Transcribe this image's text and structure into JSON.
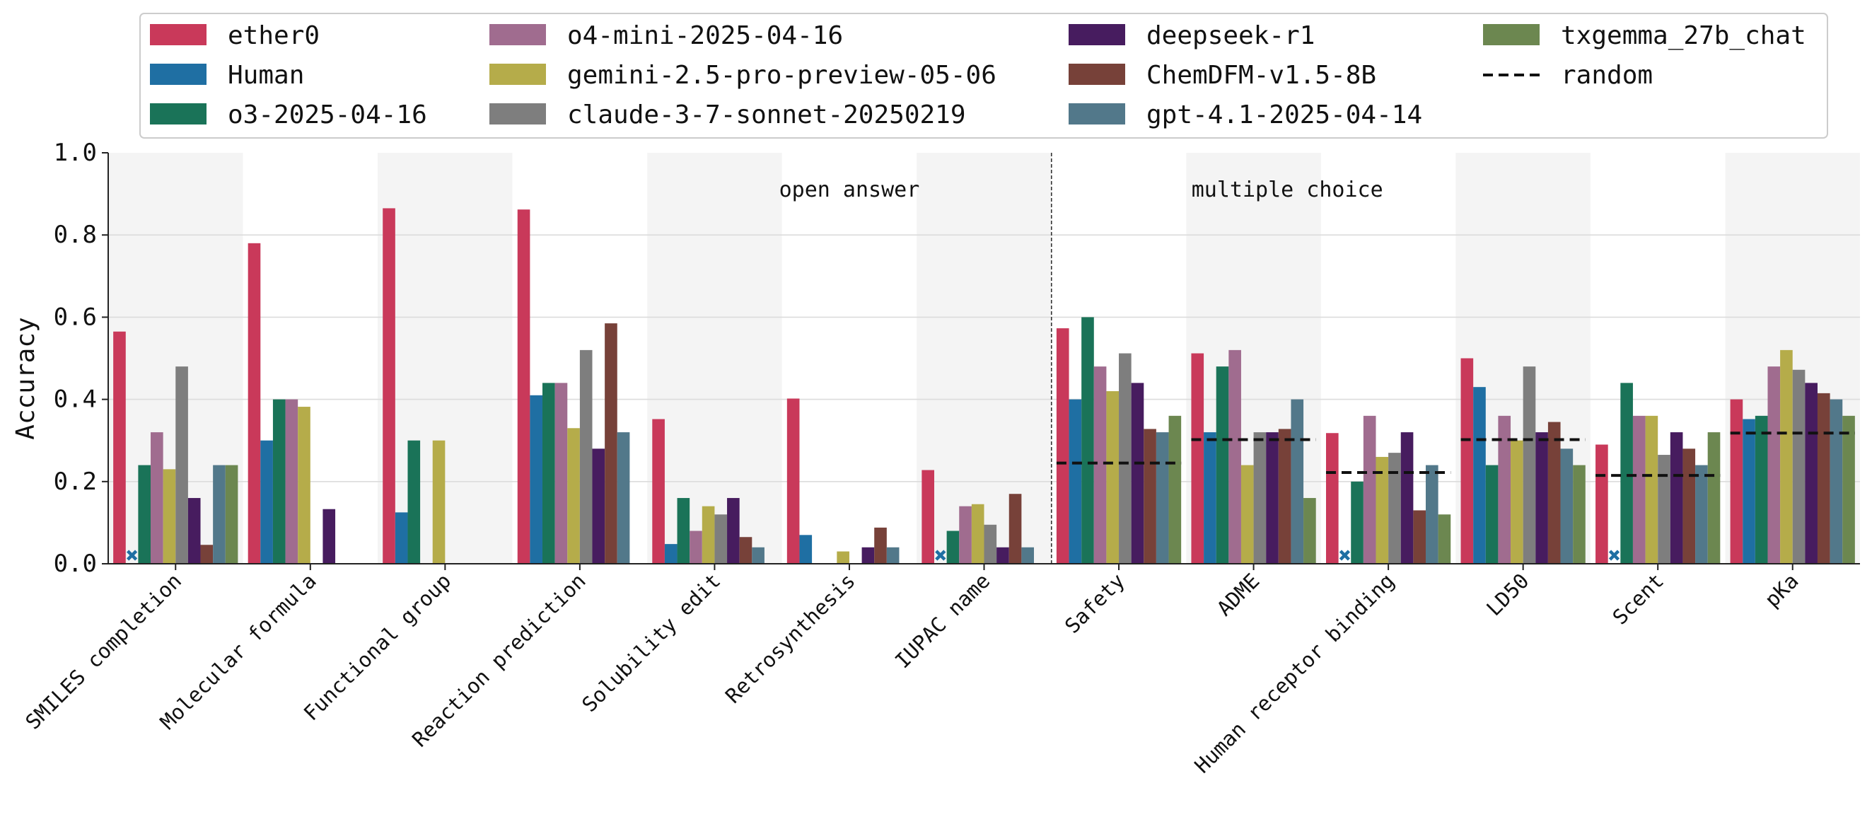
{
  "chart_data": {
    "type": "bar",
    "title": "",
    "xlabel": "",
    "ylabel": "Accuracy",
    "ylim": [
      0,
      1.0
    ],
    "yticks": [
      "0.0",
      "0.2",
      "0.4",
      "0.6",
      "0.8",
      "1.0"
    ],
    "grid": true,
    "legend_position": "top",
    "section_labels": [
      "open answer",
      "multiple choice"
    ],
    "categories": [
      "SMILES completion",
      "Molecular formula",
      "Functional group",
      "Reaction prediction",
      "Solubility edit",
      "Retrosynthesis",
      "IUPAC name",
      "Safety",
      "ADME",
      "Human receptor binding",
      "LD50",
      "Scent",
      "pKa"
    ],
    "series": [
      {
        "name": "ether0",
        "color": "#c9395a",
        "values": [
          0.565,
          0.78,
          0.865,
          0.862,
          0.352,
          0.402,
          0.228,
          0.573,
          0.512,
          0.318,
          0.5,
          0.29,
          0.4
        ]
      },
      {
        "name": "Human",
        "color": "#1f6fa3",
        "values": [
          null,
          0.3,
          0.125,
          0.41,
          0.048,
          0.07,
          null,
          0.4,
          0.32,
          null,
          0.43,
          null,
          0.352
        ]
      },
      {
        "name": "o3-2025-04-16",
        "color": "#1a7358",
        "values": [
          0.24,
          0.4,
          0.3,
          0.44,
          0.16,
          0.0,
          0.08,
          0.6,
          0.48,
          0.2,
          0.24,
          0.44,
          0.36
        ]
      },
      {
        "name": "o4-mini-2025-04-16",
        "color": "#a06c8f",
        "values": [
          0.32,
          0.4,
          0.0,
          0.44,
          0.08,
          0.0,
          0.14,
          0.48,
          0.52,
          0.36,
          0.36,
          0.36,
          0.48
        ]
      },
      {
        "name": "gemini-2.5-pro-preview-05-06",
        "color": "#b5ac4a",
        "values": [
          0.23,
          0.382,
          0.3,
          0.33,
          0.14,
          0.03,
          0.145,
          0.42,
          0.24,
          0.26,
          0.3,
          0.36,
          0.52
        ]
      },
      {
        "name": "claude-3-7-sonnet-20250219",
        "color": "#7e7e7e",
        "values": [
          0.48,
          0.0,
          0.0,
          0.52,
          0.12,
          0.0,
          0.095,
          0.512,
          0.32,
          0.27,
          0.48,
          0.265,
          0.472
        ]
      },
      {
        "name": "deepseek-r1",
        "color": "#471c5f",
        "values": [
          0.16,
          0.133,
          0.0,
          0.28,
          0.16,
          0.04,
          0.04,
          0.44,
          0.32,
          0.32,
          0.32,
          0.32,
          0.44
        ]
      },
      {
        "name": "ChemDFM-v1.5-8B",
        "color": "#774139",
        "values": [
          0.046,
          0.0,
          0.0,
          0.585,
          0.065,
          0.088,
          0.17,
          0.328,
          0.328,
          0.13,
          0.345,
          0.28,
          0.415
        ]
      },
      {
        "name": "gpt-4.1-2025-04-14",
        "color": "#52788a",
        "values": [
          0.24,
          0.0,
          0.0,
          0.32,
          0.04,
          0.04,
          0.04,
          0.32,
          0.4,
          0.24,
          0.28,
          0.24,
          0.4
        ]
      },
      {
        "name": "txgemma_27b_chat",
        "color": "#6c8750",
        "values": [
          0.24,
          0.0,
          0.0,
          0.0,
          0.0,
          0.0,
          0.0,
          0.36,
          0.16,
          0.12,
          0.24,
          0.32,
          0.36
        ]
      }
    ],
    "random": {
      "name": "random",
      "values": [
        null,
        null,
        null,
        null,
        null,
        null,
        null,
        0.245,
        0.302,
        0.222,
        0.302,
        0.215,
        0.318
      ]
    },
    "human_missing_marker_categories": [
      "SMILES completion",
      "IUPAC name",
      "Human receptor binding",
      "Scent"
    ]
  }
}
